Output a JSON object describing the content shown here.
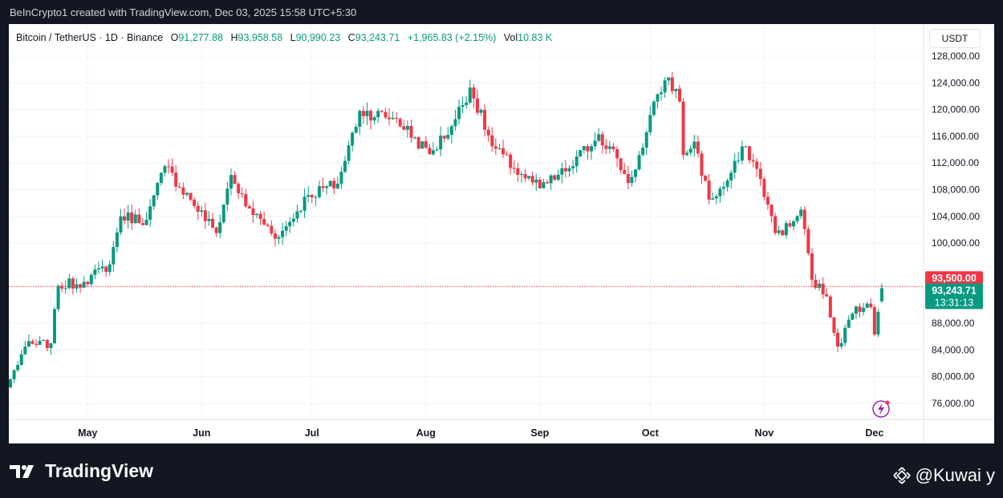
{
  "header": {
    "caption": "BeInCrypto1 created with TradingView.com, Dec 03, 2025 15:58 UTC+5:30"
  },
  "legend": {
    "symbol": "Bitcoin / TetherUS · 1D · Binance",
    "o_label": "O",
    "o_value": "91,277.88",
    "h_label": "H",
    "h_value": "93,958.58",
    "l_label": "L",
    "l_value": "90,990.23",
    "c_label": "C",
    "c_value": "93,243.71",
    "change": "+1,965.83 (+2.15%)",
    "vol_label": "Vol",
    "vol_value": "10.83 K"
  },
  "currency_label": "USDT",
  "price_line": {
    "alert_label": "93,500.00",
    "last_price_label": "93,243.71",
    "countdown": "13:31:13"
  },
  "footer": {
    "brand": "TradingView",
    "watermark": "@Kuwai y"
  },
  "colors": {
    "up": "#089981",
    "down": "#f23645",
    "alert": "#f23645",
    "background_dark": "#131722"
  },
  "icons": [
    "tradingview-logo-icon",
    "lightning-icon",
    "binance-diamond-icon"
  ],
  "chart_data": {
    "type": "candlestick",
    "timeframe": "1D",
    "y_tick_labels": [
      "128,000.00",
      "124,000.00",
      "120,000.00",
      "116,000.00",
      "112,000.00",
      "108,000.00",
      "104,000.00",
      "100,000.00",
      "88,000.00",
      "84,000.00",
      "80,000.00",
      "76,000.00"
    ],
    "y_ticks": [
      128000,
      124000,
      120000,
      116000,
      112000,
      108000,
      104000,
      100000,
      88000,
      84000,
      80000,
      76000
    ],
    "ylim": [
      74000,
      130000
    ],
    "x_tick_labels": [
      "May",
      "Jun",
      "Jul",
      "Aug",
      "Sep",
      "Oct",
      "Nov",
      "Dec"
    ],
    "x_ticks": [
      "2025-05-01",
      "2025-06-01",
      "2025-07-01",
      "2025-08-01",
      "2025-09-01",
      "2025-10-01",
      "2025-11-01",
      "2025-12-01"
    ],
    "x_range": [
      "2025-04-10",
      "2025-12-03"
    ],
    "horizontal_line": 93500,
    "last_price": 93243.71,
    "anchors": [
      [
        "2025-04-10",
        79600
      ],
      [
        "2025-04-14",
        84500
      ],
      [
        "2025-04-21",
        85000
      ],
      [
        "2025-04-23",
        93600
      ],
      [
        "2025-04-30",
        94200
      ],
      [
        "2025-05-07",
        96800
      ],
      [
        "2025-05-10",
        104000
      ],
      [
        "2025-05-17",
        103500
      ],
      [
        "2025-05-22",
        111500
      ],
      [
        "2025-05-29",
        106500
      ],
      [
        "2025-06-05",
        101500
      ],
      [
        "2025-06-09",
        110200
      ],
      [
        "2025-06-13",
        105500
      ],
      [
        "2025-06-22",
        100900
      ],
      [
        "2025-06-30",
        107200
      ],
      [
        "2025-07-08",
        108900
      ],
      [
        "2025-07-14",
        119800
      ],
      [
        "2025-07-24",
        118600
      ],
      [
        "2025-08-02",
        113300
      ],
      [
        "2025-08-08",
        117500
      ],
      [
        "2025-08-13",
        123300
      ],
      [
        "2025-08-19",
        114500
      ],
      [
        "2025-08-25",
        111200
      ],
      [
        "2025-09-01",
        108200
      ],
      [
        "2025-09-09",
        111200
      ],
      [
        "2025-09-17",
        116300
      ],
      [
        "2025-09-22",
        112700
      ],
      [
        "2025-09-25",
        109000
      ],
      [
        "2025-09-29",
        114300
      ],
      [
        "2025-10-03",
        122300
      ],
      [
        "2025-10-06",
        124800
      ],
      [
        "2025-10-09",
        121200
      ],
      [
        "2025-10-10",
        113200
      ],
      [
        "2025-10-13",
        115200
      ],
      [
        "2025-10-17",
        106500
      ],
      [
        "2025-10-21",
        108400
      ],
      [
        "2025-10-27",
        114500
      ],
      [
        "2025-10-31",
        109600
      ],
      [
        "2025-11-04",
        101500
      ],
      [
        "2025-11-08",
        102500
      ],
      [
        "2025-11-11",
        105000
      ],
      [
        "2025-11-14",
        94500
      ],
      [
        "2025-11-18",
        92000
      ],
      [
        "2025-11-21",
        84500
      ],
      [
        "2025-11-26",
        90500
      ],
      [
        "2025-11-30",
        90400
      ],
      [
        "2025-12-01",
        86300
      ],
      [
        "2025-12-03",
        93243.71
      ]
    ]
  }
}
